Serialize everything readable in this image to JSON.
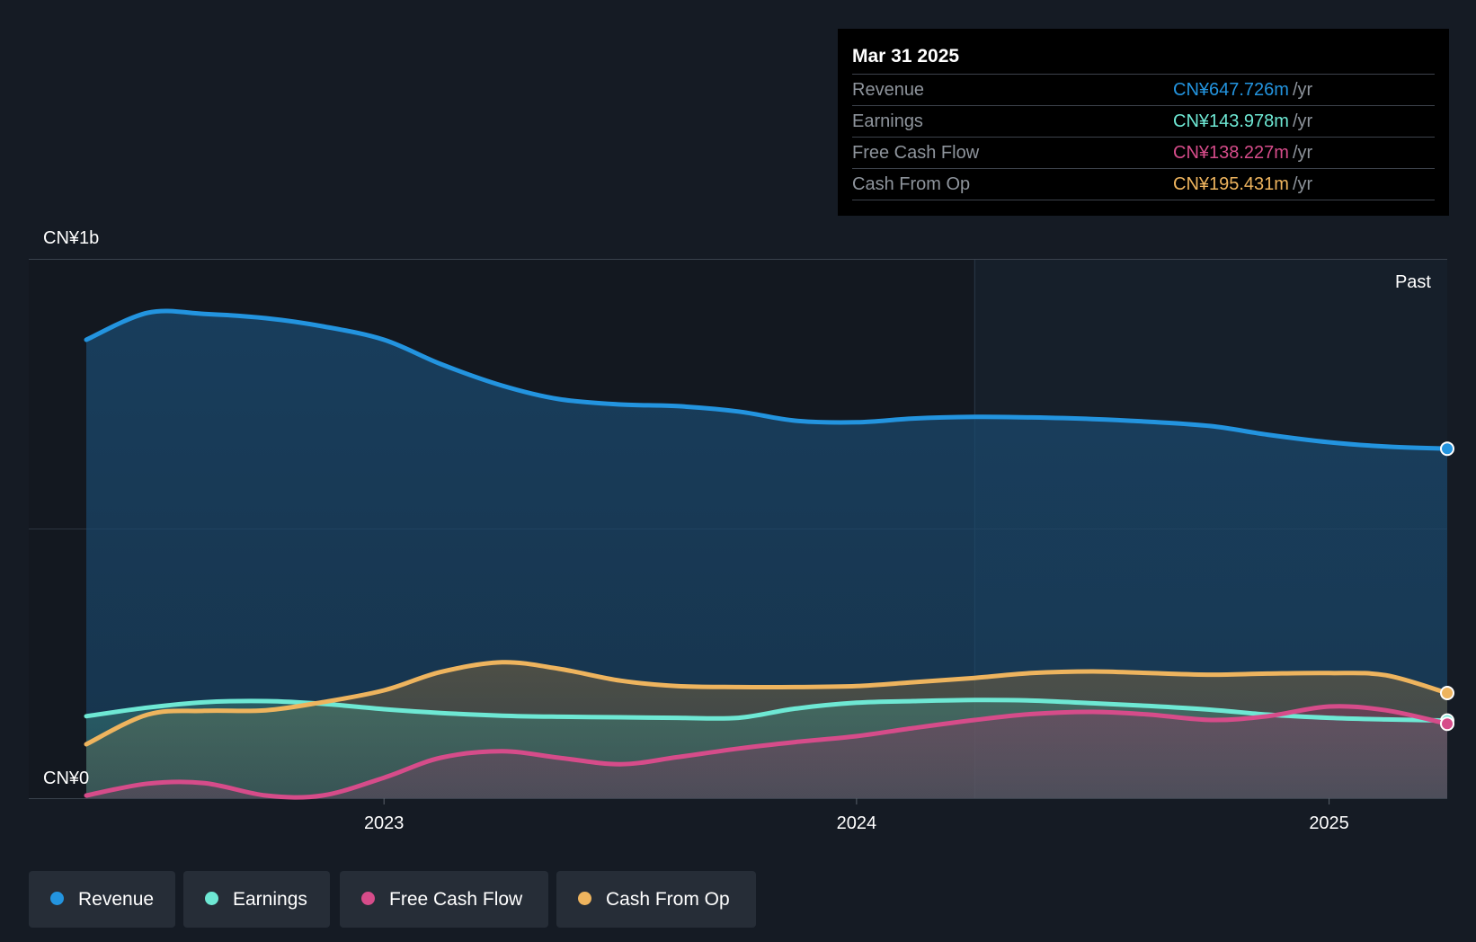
{
  "colors": {
    "revenue": "#2394df",
    "earnings": "#6ee8d4",
    "free_cash_flow": "#d64c8a",
    "cash_from_op": "#eeb45e",
    "background": "#151b24",
    "past_region": "#1a2733"
  },
  "tooltip": {
    "date": "Mar 31 2025",
    "unit": "/yr",
    "rows": [
      {
        "label": "Revenue",
        "value": "CN¥647.726m",
        "color": "#2394df"
      },
      {
        "label": "Earnings",
        "value": "CN¥143.978m",
        "color": "#6ee8d4"
      },
      {
        "label": "Free Cash Flow",
        "value": "CN¥138.227m",
        "color": "#d64c8a"
      },
      {
        "label": "Cash From Op",
        "value": "CN¥195.431m",
        "color": "#eeb45e"
      }
    ]
  },
  "legend": [
    {
      "label": "Revenue",
      "color": "#2394df"
    },
    {
      "label": "Earnings",
      "color": "#6ee8d4"
    },
    {
      "label": "Free Cash Flow",
      "color": "#d64c8a"
    },
    {
      "label": "Cash From Op",
      "color": "#eeb45e"
    }
  ],
  "chart_data": {
    "type": "area",
    "title": "",
    "xlabel": "",
    "ylabel": "",
    "y_axis_labels": {
      "top": "CN¥1b",
      "bottom": "CN¥0"
    },
    "ylim": [
      0,
      1000
    ],
    "xlim": [
      2022.37,
      2025.25
    ],
    "x_ticks": [
      {
        "value": 2023.0,
        "label": "2023"
      },
      {
        "value": 2024.0,
        "label": "2024"
      },
      {
        "value": 2025.0,
        "label": "2025"
      }
    ],
    "past_marker_x": 2024.25,
    "past_label": "Past",
    "series": [
      {
        "name": "Revenue",
        "key": "revenue",
        "color": "#2394df",
        "x": [
          2022.37,
          2022.5,
          2022.62,
          2022.75,
          2022.87,
          2023.0,
          2023.12,
          2023.25,
          2023.37,
          2023.5,
          2023.62,
          2023.75,
          2023.87,
          2024.0,
          2024.12,
          2024.25,
          2024.37,
          2024.5,
          2024.62,
          2024.75,
          2024.87,
          2025.0,
          2025.12,
          2025.25
        ],
        "values": [
          850,
          900,
          898,
          890,
          875,
          850,
          805,
          765,
          740,
          730,
          727,
          717,
          700,
          697,
          704,
          707,
          706,
          703,
          698,
          690,
          674,
          660,
          652,
          648
        ]
      },
      {
        "name": "Earnings",
        "key": "earnings",
        "color": "#6ee8d4",
        "x": [
          2022.37,
          2022.5,
          2022.62,
          2022.75,
          2022.87,
          2023.0,
          2023.12,
          2023.25,
          2023.37,
          2023.5,
          2023.62,
          2023.75,
          2023.87,
          2024.0,
          2024.12,
          2024.25,
          2024.37,
          2024.5,
          2024.62,
          2024.75,
          2024.87,
          2025.0,
          2025.12,
          2025.25
        ],
        "values": [
          152,
          168,
          178,
          180,
          175,
          165,
          158,
          153,
          151,
          150,
          149,
          149,
          166,
          177,
          180,
          182,
          181,
          176,
          171,
          164,
          155,
          149,
          146,
          144
        ]
      },
      {
        "name": "Free Cash Flow",
        "key": "free_cash_flow",
        "color": "#d64c8a",
        "x": [
          2022.37,
          2022.5,
          2022.62,
          2022.75,
          2022.87,
          2023.0,
          2023.12,
          2023.25,
          2023.37,
          2023.5,
          2023.62,
          2023.75,
          2023.87,
          2024.0,
          2024.12,
          2024.25,
          2024.37,
          2024.5,
          2024.62,
          2024.75,
          2024.87,
          2025.0,
          2025.12,
          2025.25
        ],
        "values": [
          5,
          27,
          28,
          5,
          5,
          38,
          75,
          87,
          75,
          63,
          76,
          92,
          104,
          115,
          130,
          145,
          156,
          160,
          155,
          145,
          152,
          170,
          163,
          138
        ]
      },
      {
        "name": "Cash From Op",
        "key": "cash_from_op",
        "color": "#eeb45e",
        "x": [
          2022.37,
          2022.5,
          2022.62,
          2022.75,
          2022.87,
          2023.0,
          2023.12,
          2023.25,
          2023.37,
          2023.5,
          2023.62,
          2023.75,
          2023.87,
          2024.0,
          2024.12,
          2024.25,
          2024.37,
          2024.5,
          2024.62,
          2024.75,
          2024.87,
          2025.0,
          2025.12,
          2025.25
        ],
        "values": [
          100,
          155,
          162,
          163,
          178,
          200,
          234,
          252,
          240,
          218,
          208,
          206,
          206,
          208,
          215,
          223,
          232,
          235,
          232,
          229,
          231,
          232,
          228,
          195
        ]
      }
    ]
  }
}
